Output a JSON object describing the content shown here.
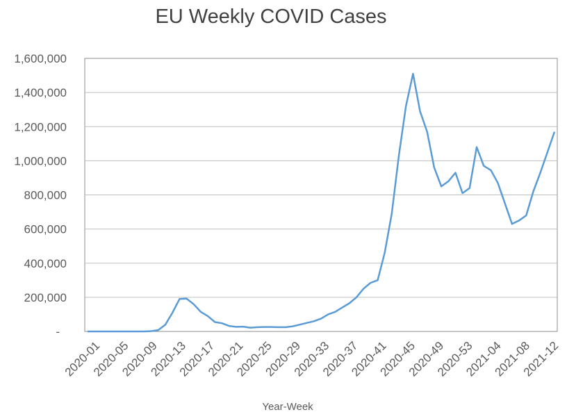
{
  "chart_data": {
    "type": "line",
    "title": "EU Weekly COVID Cases",
    "xlabel": "Year-Week",
    "ylabel": "",
    "ylim": [
      0,
      1600000
    ],
    "yticks": [
      0,
      200000,
      400000,
      600000,
      800000,
      1000000,
      1200000,
      1400000,
      1600000
    ],
    "ytick_labels": [
      "-",
      "200,000",
      "400,000",
      "600,000",
      "800,000",
      "1,000,000",
      "1,200,000",
      "1,400,000",
      "1,600,000"
    ],
    "xtick_labels": [
      "2020-01",
      "2020-05",
      "2020-09",
      "2020-13",
      "2020-17",
      "2020-21",
      "2020-25",
      "2020-29",
      "2020-33",
      "2020-37",
      "2020-41",
      "2020-45",
      "2020-49",
      "2020-53",
      "2021-04",
      "2021-08",
      "2021-12"
    ],
    "grid": true,
    "legend": "none",
    "series_color": "#5b9bd5",
    "series": [
      {
        "values": [
          0,
          0,
          0,
          0,
          0,
          0,
          0,
          0,
          0,
          2000,
          8000,
          40000,
          110000,
          190000,
          192000,
          160000,
          115000,
          90000,
          55000,
          48000,
          32000,
          27000,
          28000,
          22000,
          25000,
          26000,
          26000,
          25000,
          25000,
          30000,
          40000,
          50000,
          60000,
          75000,
          100000,
          115000,
          140000,
          165000,
          200000,
          250000,
          285000,
          300000,
          460000,
          690000,
          1030000,
          1320000,
          1510000,
          1290000,
          1170000,
          960000,
          850000,
          880000,
          930000,
          810000,
          840000,
          1080000,
          970000,
          945000,
          870000,
          750000,
          630000,
          650000,
          680000,
          820000,
          930000,
          1050000,
          1170000
        ]
      }
    ]
  }
}
